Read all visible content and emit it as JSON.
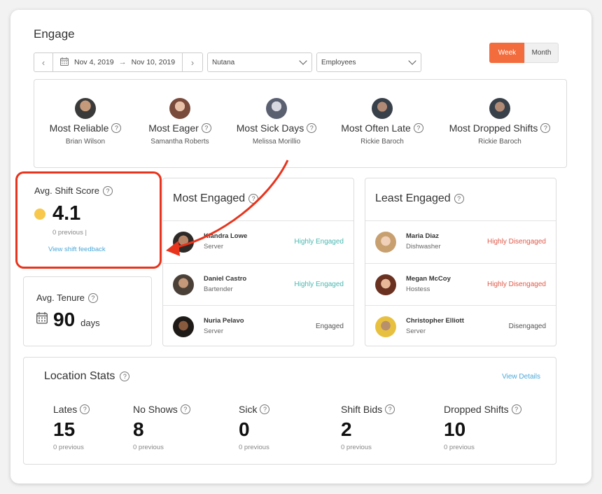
{
  "title": "Engage",
  "toolbar": {
    "start_date": "Nov 4, 2019",
    "end_date": "Nov 10, 2019",
    "location": "Nutana",
    "filter": "Employees",
    "week_label": "Week",
    "month_label": "Month"
  },
  "awards": [
    {
      "label": "Most Reliable",
      "name": "Brian Wilson"
    },
    {
      "label": "Most Eager",
      "name": "Samantha Roberts"
    },
    {
      "label": "Most Sick Days",
      "name": "Melissa Morillio"
    },
    {
      "label": "Most Often Late",
      "name": "Rickie Baroch"
    },
    {
      "label": "Most Dropped Shifts",
      "name": "Rickie Baroch"
    }
  ],
  "shift_score": {
    "title": "Avg. Shift Score",
    "value": "4.1",
    "previous": "0 previous |",
    "link": "View shift feedback"
  },
  "tenure": {
    "title": "Avg. Tenure",
    "value": "90",
    "unit": "days"
  },
  "most_engaged": {
    "title": "Most Engaged",
    "rows": [
      {
        "name": "Kiandra Lowe",
        "role": "Server",
        "status": "Highly Engaged"
      },
      {
        "name": "Daniel Castro",
        "role": "Bartender",
        "status": "Highly Engaged"
      },
      {
        "name": "Nuria Pelavo",
        "role": "Server",
        "status": "Engaged"
      }
    ]
  },
  "least_engaged": {
    "title": "Least Engaged",
    "rows": [
      {
        "name": "Maria Diaz",
        "role": "Dishwasher",
        "status": "Highly Disengaged"
      },
      {
        "name": "Megan McCoy",
        "role": "Hostess",
        "status": "Highly Disengaged"
      },
      {
        "name": "Christopher Elliott",
        "role": "Server",
        "status": "Disengaged"
      }
    ]
  },
  "location_stats": {
    "title": "Location Stats",
    "link": "View Details",
    "stats": [
      {
        "label": "Lates",
        "value": "15",
        "previous": "0 previous"
      },
      {
        "label": "No Shows",
        "value": "8",
        "previous": "0 previous"
      },
      {
        "label": "Sick",
        "value": "0",
        "previous": "0 previous"
      },
      {
        "label": "Shift Bids",
        "value": "2",
        "previous": "0 previous"
      },
      {
        "label": "Dropped Shifts",
        "value": "10",
        "previous": "0 previous"
      }
    ]
  },
  "colors": {
    "accent": "#f26c3d",
    "highlight": "#e8341c",
    "link": "#4aa8d8",
    "engaged": "#4ab8b0",
    "disengaged": "#e05a4a"
  }
}
